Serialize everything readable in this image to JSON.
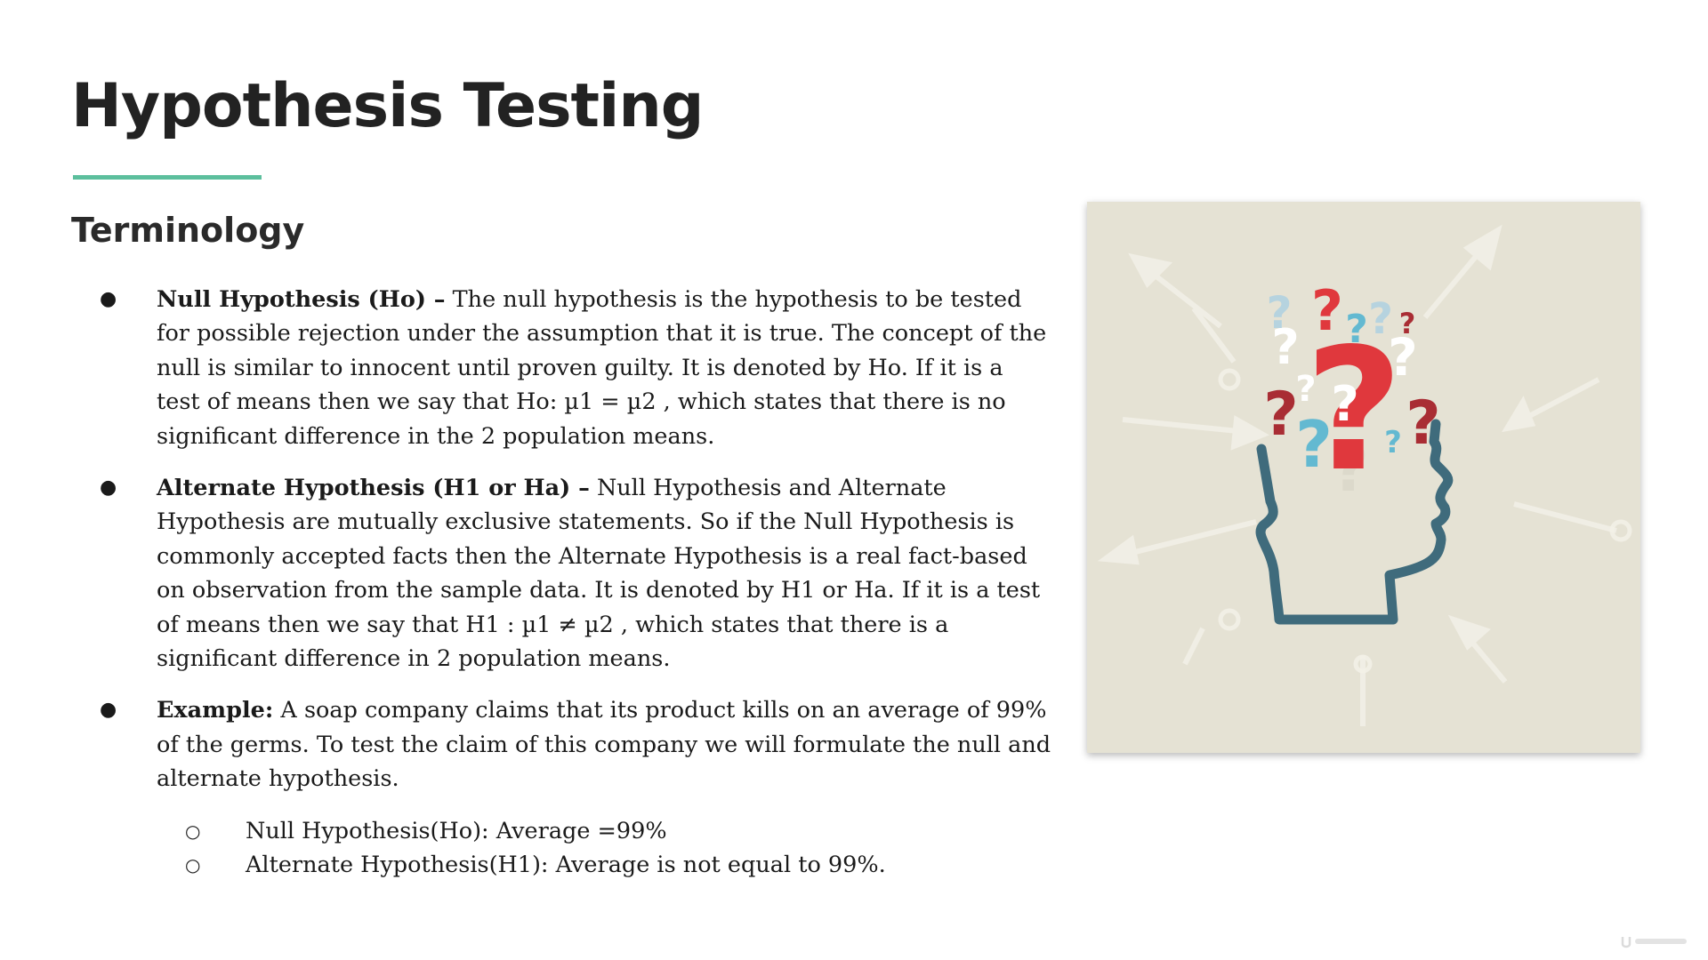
{
  "slide": {
    "title": "Hypothesis Testing",
    "subtitle": "Terminology",
    "accent_color": "#5cbf9d"
  },
  "bullets": [
    {
      "term": "Null Hypothesis (Ho) –",
      "text": " The null hypothesis is the hypothesis to be tested for possible rejection under the assumption that it is true. The concept of the null is similar to innocent until proven guilty. It is denoted by Ho. If it is a test of means then we say that Ho: µ1 = µ2 , which states that there is no significant difference in the 2 population means."
    },
    {
      "term": "Alternate Hypothesis (H1 or Ha) –",
      "text": " Null Hypothesis and Alternate Hypothesis are mutually exclusive statements. So if the Null Hypothesis is commonly accepted facts then the Alternate Hypothesis is a real fact-based on observation from the sample data. It is denoted by H1 or Ha. If it is a test of means then we say that H1 : µ1 ≠ µ2 , which states that there is a significant difference in 2 population means."
    },
    {
      "term": "Example:",
      "text": " A soap company claims that its product kills on an average of 99% of the germs. To test the claim of this company we will formulate the null and alternate hypothesis.",
      "sub_items": [
        "Null Hypothesis(Ho): Average =99%",
        "Alternate Hypothesis(H1): Average is not equal to 99%."
      ]
    }
  ],
  "image": {
    "icon": "head-with-question-marks-icon",
    "background_color": "#e5e2d4",
    "head_color": "#3f6b7c",
    "mark_colors": [
      "#e0383d",
      "#a92d34",
      "#63b9d1",
      "#ffffff",
      "#b6d3df"
    ]
  }
}
